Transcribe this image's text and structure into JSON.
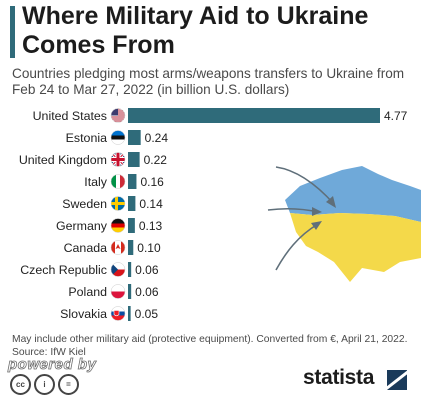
{
  "header": {
    "title": "Where Military Aid to Ukraine Comes From",
    "subtitle": "Countries pledging most arms/weapons transfers to Ukraine from Feb 24 to Mar 27, 2022 (in billion U.S. dollars)"
  },
  "footer": {
    "note": "May include other military aid (protective equipment). Converted from €, April 21, 2022.",
    "source": "Source: IfW Kiel",
    "powered_by": "powered by",
    "brand": "statista"
  },
  "colors": {
    "bar": "#2f6b7a",
    "map_yellow": "#f4d94a",
    "map_blue": "#6fa9d9"
  },
  "chart_data": {
    "type": "bar",
    "orientation": "horizontal",
    "title": "Where Military Aid to Ukraine Comes From",
    "subtitle": "Countries pledging most arms/weapons transfers to Ukraine from Feb 24 to Mar 27, 2022 (in billion U.S. dollars)",
    "categories": [
      "United States",
      "Estonia",
      "United Kingdom",
      "Italy",
      "Sweden",
      "Germany",
      "Canada",
      "Czech Republic",
      "Poland",
      "Slovakia"
    ],
    "values": [
      4.77,
      0.24,
      0.22,
      0.16,
      0.14,
      0.13,
      0.1,
      0.06,
      0.06,
      0.05
    ],
    "value_labels": [
      "4.77",
      "0.24",
      "0.22",
      "0.16",
      "0.14",
      "0.13",
      "0.10",
      "0.06",
      "0.06",
      "0.05"
    ],
    "flags": [
      "flag-us-icon",
      "flag-ee-icon",
      "flag-uk-icon",
      "flag-it-icon",
      "flag-se-icon",
      "flag-de-icon",
      "flag-ca-icon",
      "flag-cz-icon",
      "flag-pl-icon",
      "flag-sk-icon"
    ],
    "xlim": [
      0,
      4.77
    ],
    "grid": false
  }
}
